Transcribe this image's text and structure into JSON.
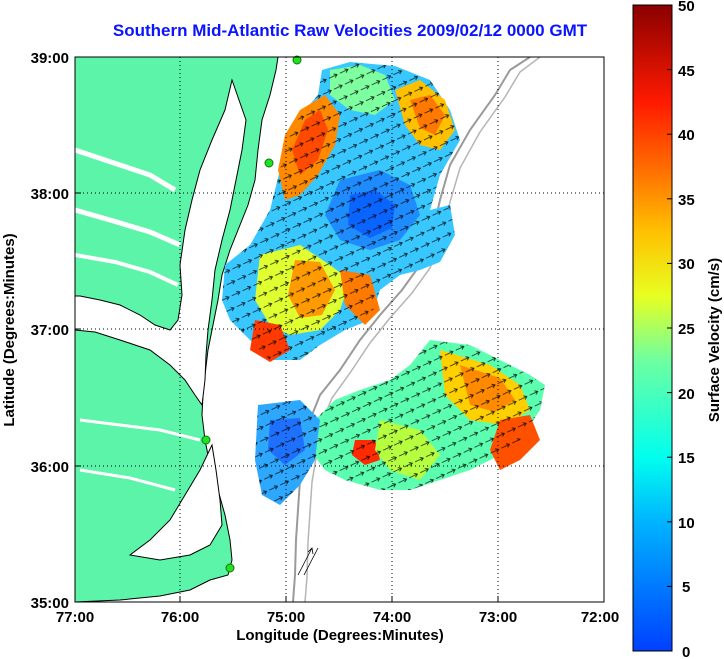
{
  "title": "Southern Mid-Atlantic Raw Velocities 2009/02/12 0000 GMT",
  "axes": {
    "xlabel": "Longitude (Degrees:Minutes)",
    "ylabel": "Latitude (Degrees:Minutes)",
    "x_ticks": [
      "77:00",
      "76:00",
      "75:00",
      "74:00",
      "73:00",
      "72:00"
    ],
    "y_ticks": [
      "39:00",
      "38:00",
      "37:00",
      "36:00",
      "35:00"
    ],
    "grid": "dotted"
  },
  "colorbar": {
    "label": "Surface Velocity (cm/s)",
    "ticks": [
      "50",
      "45",
      "40",
      "35",
      "30",
      "25",
      "20",
      "15",
      "10",
      "5",
      "0"
    ],
    "range": [
      0,
      50
    ],
    "colormap": "jet"
  },
  "colors": {
    "land": "#5cf4a8",
    "water": "#ffffff",
    "title": "#0a14ff",
    "station": "#22e022",
    "isobath": "#9a9a9a"
  },
  "stations": [
    {
      "name": "station",
      "lon": -75.1,
      "lat": 39.0
    },
    {
      "name": "station",
      "lon": -75.15,
      "lat": 38.3
    },
    {
      "name": "station",
      "lon": -75.7,
      "lat": 36.2
    },
    {
      "name": "station",
      "lon": -75.5,
      "lat": 35.3
    }
  ]
}
